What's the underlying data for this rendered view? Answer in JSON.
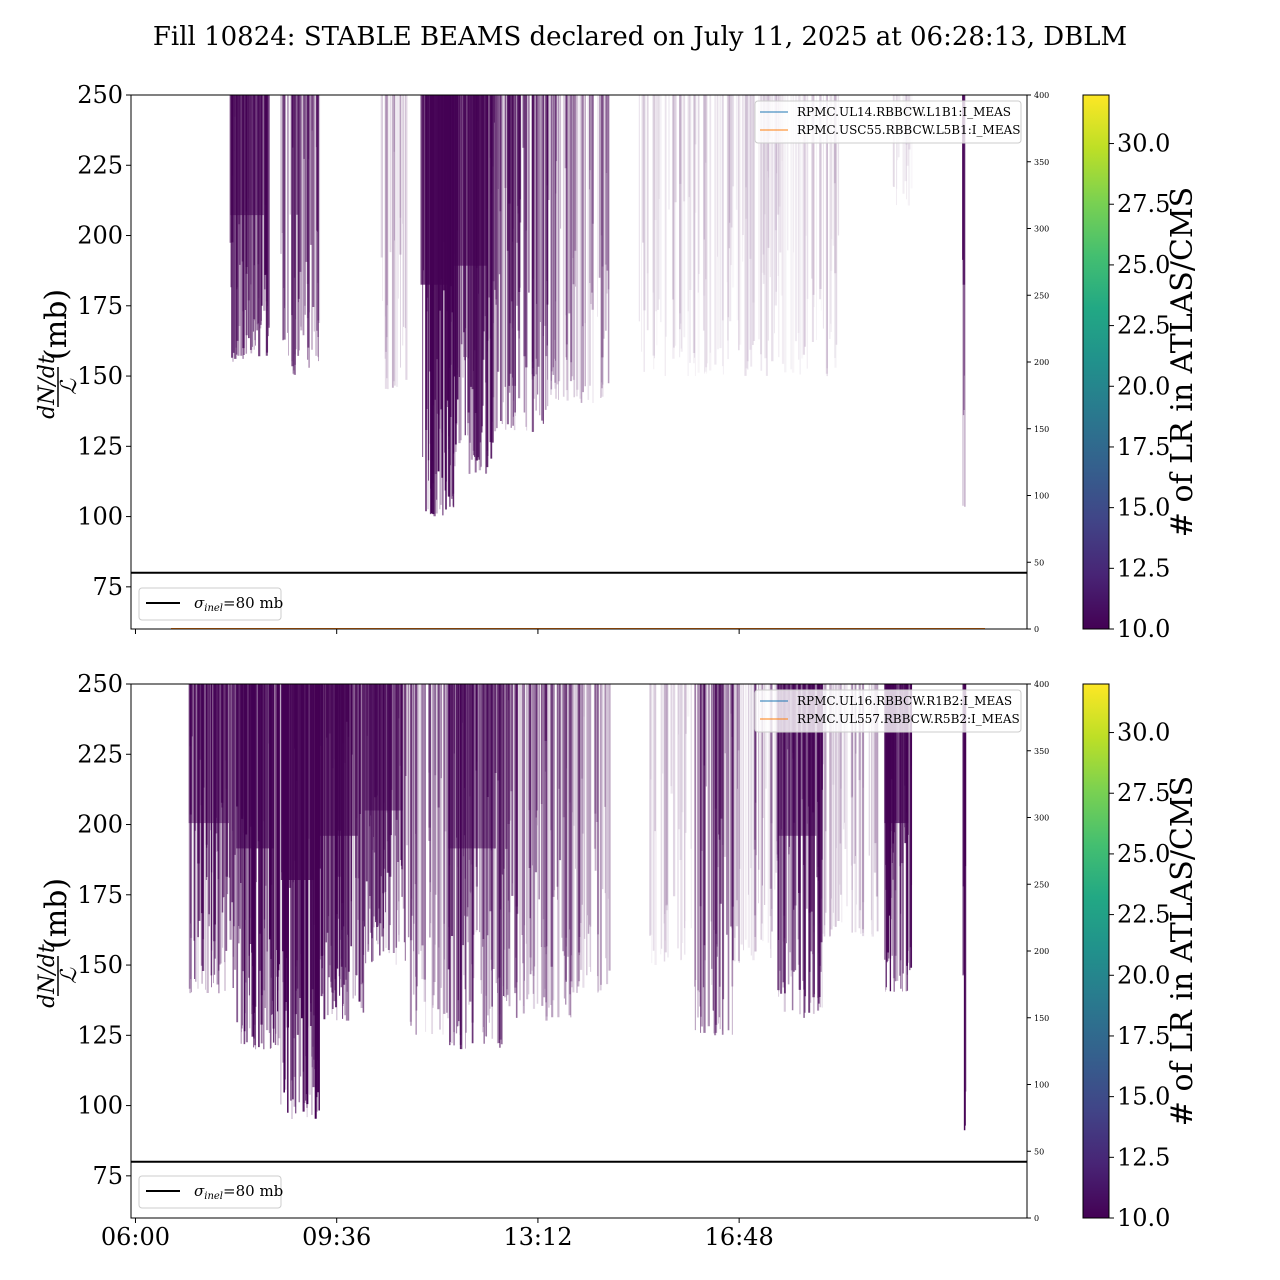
{
  "figure": {
    "title": "Fill 10824: STABLE BEAMS declared on July 11, 2025 at 06:28:13, DBLM"
  },
  "chart_data": [
    {
      "type": "heatmap",
      "y_label_parts": {
        "numerator": "dN/dt",
        "denominator": "ℒ",
        "unit": "(mb)"
      },
      "ylim": [
        60,
        250
      ],
      "yticks": [
        75,
        100,
        125,
        150,
        175,
        200,
        225,
        250
      ],
      "right_axis": {
        "ylim": [
          0,
          400
        ],
        "ticks": [
          0,
          50,
          100,
          150,
          200,
          250,
          300,
          350,
          400
        ]
      },
      "xlim_hours": [
        5.92,
        21.95
      ],
      "xticks": [
        "06:00",
        "09:36",
        "13:12",
        "16:48"
      ],
      "xtick_hours": [
        6.0,
        9.6,
        13.2,
        16.8
      ],
      "show_xticklabels": false,
      "reference_line": {
        "value": 80,
        "label": "σ_inel=80 mb",
        "label_main": "σ",
        "label_sub": "inel",
        "label_rest": "=80 mb",
        "color": "#000000"
      },
      "legend": [
        {
          "label": "RPMC.UL14.RBBCW.L1B1:I_MEAS",
          "color": "#1f77b4"
        },
        {
          "label": "RPMC.USC55.RBBCW.L5B1:I_MEAS",
          "color": "#ff7f0e"
        }
      ],
      "density_color": "#440154",
      "dense_bands": [
        {
          "from": 7.7,
          "to": 8.4,
          "min_y": 155,
          "intensity": 0.75
        },
        {
          "from": 8.6,
          "to": 9.3,
          "min_y": 150,
          "intensity": 0.55
        },
        {
          "from": 10.4,
          "to": 10.9,
          "min_y": 145,
          "intensity": 0.2
        },
        {
          "from": 11.1,
          "to": 11.7,
          "min_y": 100,
          "intensity": 1.0
        },
        {
          "from": 11.7,
          "to": 12.4,
          "min_y": 115,
          "intensity": 0.8
        },
        {
          "from": 12.4,
          "to": 13.4,
          "min_y": 130,
          "intensity": 0.6
        },
        {
          "from": 13.4,
          "to": 14.5,
          "min_y": 140,
          "intensity": 0.35
        },
        {
          "from": 15.0,
          "to": 18.6,
          "min_y": 150,
          "intensity": 0.12
        },
        {
          "from": 19.5,
          "to": 19.9,
          "min_y": 210,
          "intensity": 0.1
        },
        {
          "from": 20.8,
          "to": 20.85,
          "min_y": 100,
          "intensity": 0.9
        }
      ]
    },
    {
      "type": "heatmap",
      "y_label_parts": {
        "numerator": "dN/dt",
        "denominator": "ℒ",
        "unit": "(mb)"
      },
      "ylim": [
        60,
        250
      ],
      "yticks": [
        75,
        100,
        125,
        150,
        175,
        200,
        225,
        250
      ],
      "right_axis": {
        "ylim": [
          0,
          400
        ],
        "ticks": [
          0,
          50,
          100,
          150,
          200,
          250,
          300,
          350,
          400
        ]
      },
      "xlim_hours": [
        5.92,
        21.95
      ],
      "xticks": [
        "06:00",
        "09:36",
        "13:12",
        "16:48"
      ],
      "xtick_hours": [
        6.0,
        9.6,
        13.2,
        16.8
      ],
      "show_xticklabels": true,
      "reference_line": {
        "value": 80,
        "label": "σ_inel=80 mb",
        "label_main": "σ",
        "label_sub": "inel",
        "label_rest": "=80 mb",
        "color": "#000000"
      },
      "legend": [
        {
          "label": "RPMC.UL16.RBBCW.R1B2:I_MEAS",
          "color": "#1f77b4"
        },
        {
          "label": "RPMC.UL557.RBBCW.R5B2:I_MEAS",
          "color": "#ff7f0e"
        }
      ],
      "density_color": "#440154",
      "dense_bands": [
        {
          "from": 6.95,
          "to": 7.8,
          "min_y": 140,
          "intensity": 0.65
        },
        {
          "from": 7.8,
          "to": 8.6,
          "min_y": 120,
          "intensity": 0.85
        },
        {
          "from": 8.6,
          "to": 9.3,
          "min_y": 95,
          "intensity": 1.0
        },
        {
          "from": 9.3,
          "to": 10.1,
          "min_y": 130,
          "intensity": 0.8
        },
        {
          "from": 10.1,
          "to": 10.9,
          "min_y": 150,
          "intensity": 0.65
        },
        {
          "from": 10.9,
          "to": 11.6,
          "min_y": 125,
          "intensity": 0.4
        },
        {
          "from": 11.6,
          "to": 12.6,
          "min_y": 120,
          "intensity": 0.7
        },
        {
          "from": 12.6,
          "to": 13.8,
          "min_y": 130,
          "intensity": 0.5
        },
        {
          "from": 13.8,
          "to": 14.5,
          "min_y": 140,
          "intensity": 0.3
        },
        {
          "from": 15.2,
          "to": 16.0,
          "min_y": 150,
          "intensity": 0.15
        },
        {
          "from": 16.0,
          "to": 16.7,
          "min_y": 125,
          "intensity": 0.55
        },
        {
          "from": 16.7,
          "to": 17.5,
          "min_y": 150,
          "intensity": 0.25
        },
        {
          "from": 17.5,
          "to": 18.3,
          "min_y": 130,
          "intensity": 0.7
        },
        {
          "from": 18.3,
          "to": 19.3,
          "min_y": 160,
          "intensity": 0.2
        },
        {
          "from": 19.4,
          "to": 19.9,
          "min_y": 140,
          "intensity": 0.95
        },
        {
          "from": 20.8,
          "to": 20.85,
          "min_y": 90,
          "intensity": 0.9
        }
      ]
    }
  ],
  "colorbar": {
    "label": "# of LR in ATLAS/CMS",
    "range": [
      10.0,
      32.0
    ],
    "ticks": [
      "10.0",
      "12.5",
      "15.0",
      "17.5",
      "20.0",
      "22.5",
      "25.0",
      "27.5",
      "30.0"
    ],
    "tick_values": [
      10.0,
      12.5,
      15.0,
      17.5,
      20.0,
      22.5,
      25.0,
      27.5,
      30.0
    ],
    "colors": [
      "#440154",
      "#482475",
      "#414487",
      "#355f8d",
      "#2a788e",
      "#21918c",
      "#22a884",
      "#44bf70",
      "#7ad151",
      "#bddf26",
      "#fde725"
    ]
  }
}
